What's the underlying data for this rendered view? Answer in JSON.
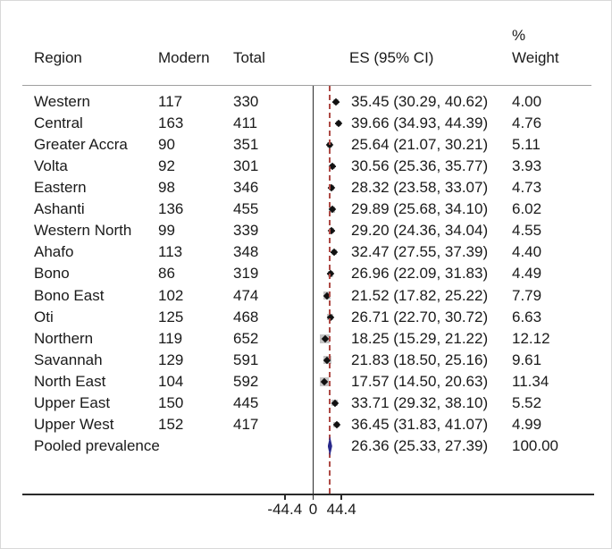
{
  "chart_data": {
    "type": "forest",
    "columns": {
      "region": "Region",
      "modern": "Modern",
      "total": "Total",
      "es": "ES (95% CI)",
      "weight_line1": "%",
      "weight_line2": "Weight"
    },
    "x_ticks": [
      -44.4,
      0,
      44.4
    ],
    "x_tick_labels": [
      "-44.4",
      "0",
      "44.4"
    ],
    "zero_line_value": 0,
    "pooled_line_value": 26.36,
    "studies": [
      {
        "region": "Western",
        "modern": "117",
        "total": "330",
        "es": 35.45,
        "lo": 30.29,
        "hi": 40.62,
        "es_label": "35.45 (30.29, 40.62)",
        "weight": 4.0,
        "weight_label": "4.00"
      },
      {
        "region": "Central",
        "modern": "163",
        "total": "411",
        "es": 39.66,
        "lo": 34.93,
        "hi": 44.39,
        "es_label": "39.66 (34.93, 44.39)",
        "weight": 4.76,
        "weight_label": "4.76"
      },
      {
        "region": "Greater Accra",
        "modern": "90",
        "total": "351",
        "es": 25.64,
        "lo": 21.07,
        "hi": 30.21,
        "es_label": "25.64 (21.07, 30.21)",
        "weight": 5.11,
        "weight_label": "5.11"
      },
      {
        "region": "Volta",
        "modern": "92",
        "total": "301",
        "es": 30.56,
        "lo": 25.36,
        "hi": 35.77,
        "es_label": "30.56 (25.36, 35.77)",
        "weight": 3.93,
        "weight_label": "3.93"
      },
      {
        "region": "Eastern",
        "modern": "98",
        "total": "346",
        "es": 28.32,
        "lo": 23.58,
        "hi": 33.07,
        "es_label": "28.32 (23.58, 33.07)",
        "weight": 4.73,
        "weight_label": "4.73"
      },
      {
        "region": "Ashanti",
        "modern": "136",
        "total": "455",
        "es": 29.89,
        "lo": 25.68,
        "hi": 34.1,
        "es_label": "29.89 (25.68, 34.10)",
        "weight": 6.02,
        "weight_label": "6.02"
      },
      {
        "region": "Western North",
        "modern": "99",
        "total": "339",
        "es": 29.2,
        "lo": 24.36,
        "hi": 34.04,
        "es_label": "29.20 (24.36, 34.04)",
        "weight": 4.55,
        "weight_label": "4.55"
      },
      {
        "region": "Ahafo",
        "modern": "113",
        "total": "348",
        "es": 32.47,
        "lo": 27.55,
        "hi": 37.39,
        "es_label": "32.47 (27.55, 37.39)",
        "weight": 4.4,
        "weight_label": "4.40"
      },
      {
        "region": "Bono",
        "modern": "86",
        "total": "319",
        "es": 26.96,
        "lo": 22.09,
        "hi": 31.83,
        "es_label": "26.96 (22.09, 31.83)",
        "weight": 4.49,
        "weight_label": "4.49"
      },
      {
        "region": "Bono East",
        "modern": "102",
        "total": "474",
        "es": 21.52,
        "lo": 17.82,
        "hi": 25.22,
        "es_label": "21.52 (17.82, 25.22)",
        "weight": 7.79,
        "weight_label": "7.79"
      },
      {
        "region": "Oti",
        "modern": "125",
        "total": "468",
        "es": 26.71,
        "lo": 22.7,
        "hi": 30.72,
        "es_label": "26.71 (22.70, 30.72)",
        "weight": 6.63,
        "weight_label": "6.63"
      },
      {
        "region": "Northern",
        "modern": "119",
        "total": "652",
        "es": 18.25,
        "lo": 15.29,
        "hi": 21.22,
        "es_label": "18.25 (15.29, 21.22)",
        "weight": 12.12,
        "weight_label": "12.12"
      },
      {
        "region": "Savannah",
        "modern": "129",
        "total": "591",
        "es": 21.83,
        "lo": 18.5,
        "hi": 25.16,
        "es_label": "21.83 (18.50, 25.16)",
        "weight": 9.61,
        "weight_label": "9.61"
      },
      {
        "region": "North East",
        "modern": "104",
        "total": "592",
        "es": 17.57,
        "lo": 14.5,
        "hi": 20.63,
        "es_label": "17.57 (14.50, 20.63)",
        "weight": 11.34,
        "weight_label": "11.34"
      },
      {
        "region": "Upper East",
        "modern": "150",
        "total": "445",
        "es": 33.71,
        "lo": 29.32,
        "hi": 38.1,
        "es_label": "33.71 (29.32, 38.10)",
        "weight": 5.52,
        "weight_label": "5.52"
      },
      {
        "region": "Upper West",
        "modern": "152",
        "total": "417",
        "es": 36.45,
        "lo": 31.83,
        "hi": 41.07,
        "es_label": "36.45 (31.83, 41.07)",
        "weight": 4.99,
        "weight_label": "4.99"
      }
    ],
    "pooled": {
      "region": "Pooled prevalence",
      "es": 26.36,
      "lo": 25.33,
      "hi": 27.39,
      "es_label": "26.36 (25.33, 27.39)",
      "weight_label": "100.00"
    }
  },
  "colors": {
    "marker": "#111111",
    "pooled_diamond": "#28288a",
    "pooled_dashed_line": "#ae4a45",
    "weight_box": "#c4c4c4",
    "axis": "#2a2a2a",
    "header_rule": "#a0a0a0",
    "text": "#1a1a1a"
  }
}
